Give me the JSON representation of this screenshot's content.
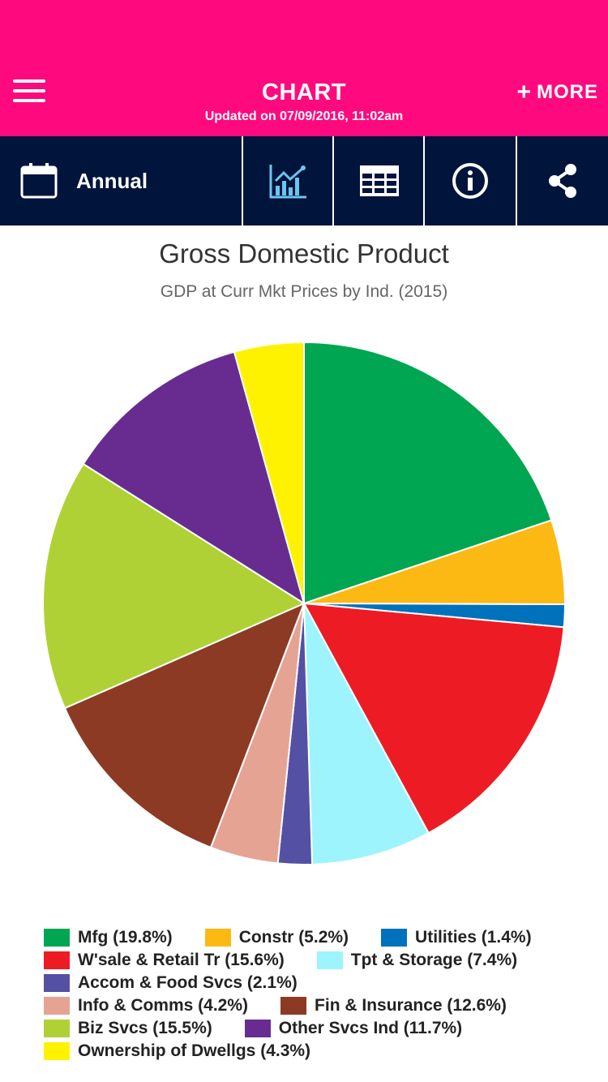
{
  "header": {
    "title": "CHART",
    "subtitle": "Updated on 07/09/2016, 11:02am",
    "more_label": "MORE"
  },
  "toolbar": {
    "period_label": "Annual",
    "icons": [
      "calendar-icon",
      "chart-icon",
      "table-icon",
      "info-icon",
      "share-icon"
    ]
  },
  "colors": {
    "header_bg": "#ff0a7e",
    "toolbar_bg": "#01143b",
    "active_icon": "#6cc5f0"
  },
  "chart_data": {
    "type": "pie",
    "title": "Gross Domestic Product",
    "subtitle": "GDP at Curr Mkt Prices by Ind. (2015)",
    "legend_position": "bottom",
    "slices": [
      {
        "label": "Mfg (19.8%)",
        "value": 19.8,
        "color": "#00a651"
      },
      {
        "label": "Constr (5.2%)",
        "value": 5.2,
        "color": "#fdb913"
      },
      {
        "label": "Utilities (1.4%)",
        "value": 1.4,
        "color": "#0072bc"
      },
      {
        "label": "W'sale & Retail Tr (15.6%)",
        "value": 15.6,
        "color": "#ed1c24"
      },
      {
        "label": "Tpt & Storage (7.4%)",
        "value": 7.4,
        "color": "#9ef4fd"
      },
      {
        "label": "Accom & Food Svcs (2.1%)",
        "value": 2.1,
        "color": "#5450a3"
      },
      {
        "label": "Info & Comms (4.2%)",
        "value": 4.2,
        "color": "#e5a394"
      },
      {
        "label": "Fin & Insurance (12.6%)",
        "value": 12.6,
        "color": "#8d3a24"
      },
      {
        "label": "Biz Svcs (15.5%)",
        "value": 15.5,
        "color": "#b0d136"
      },
      {
        "label": "Other Svcs Ind (11.7%)",
        "value": 11.7,
        "color": "#682c91"
      },
      {
        "label": "Ownership of Dwellgs (4.3%)",
        "value": 4.3,
        "color": "#fff200"
      }
    ]
  }
}
